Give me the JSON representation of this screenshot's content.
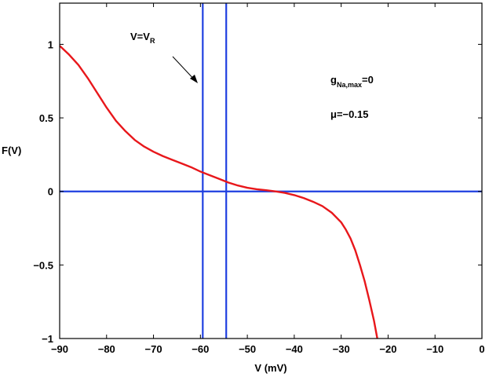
{
  "chart_data": {
    "type": "line",
    "xlabel": "V (mV)",
    "ylabel": "F(V)",
    "xlim": [
      -90,
      0
    ],
    "ylim": [
      -1,
      1.28
    ],
    "xticks": [
      -90,
      -80,
      -70,
      -60,
      -50,
      -40,
      -30,
      -20,
      -10,
      0
    ],
    "yticks": [
      -1,
      -0.5,
      0,
      0.5,
      1
    ],
    "xtick_labels": [
      "−90",
      "−80",
      "−70",
      "−60",
      "−50",
      "−40",
      "−30",
      "−20",
      "−10",
      "0"
    ],
    "ytick_labels": [
      "−1",
      "−0.5",
      "0",
      "0.5",
      "1"
    ],
    "grid": false,
    "series": [
      {
        "color": "#e8171b",
        "x": [
          -90,
          -88,
          -86,
          -84,
          -82,
          -80,
          -78,
          -76,
          -74,
          -72,
          -70,
          -68,
          -66,
          -64,
          -62,
          -60,
          -58,
          -56,
          -54,
          -52,
          -50,
          -48,
          -46,
          -44,
          -42,
          -40,
          -38,
          -36,
          -34,
          -32,
          -30,
          -29,
          -28,
          -27,
          -26,
          -25,
          -24,
          -23,
          -22.3
        ],
        "y": [
          0.99,
          0.93,
          0.86,
          0.77,
          0.67,
          0.57,
          0.48,
          0.41,
          0.35,
          0.305,
          0.27,
          0.24,
          0.215,
          0.19,
          0.165,
          0.135,
          0.11,
          0.085,
          0.06,
          0.04,
          0.025,
          0.015,
          0.008,
          0.0,
          -0.01,
          -0.025,
          -0.045,
          -0.07,
          -0.1,
          -0.145,
          -0.21,
          -0.26,
          -0.32,
          -0.4,
          -0.5,
          -0.61,
          -0.74,
          -0.88,
          -1.0
        ]
      }
    ],
    "reference_lines": [
      {
        "orientation": "horizontal",
        "value": 0,
        "color": "#1f3fe0"
      },
      {
        "orientation": "vertical",
        "value": -59.5,
        "color": "#1f3fe0"
      },
      {
        "orientation": "vertical",
        "value": -54.5,
        "color": "#1f3fe0"
      }
    ],
    "annotations": {
      "vr_main": "V=V",
      "vr_sub": "R",
      "g_main": "g",
      "g_sub": "Na,max",
      "g_tail": "=0",
      "mu": "μ=−0.15"
    }
  }
}
